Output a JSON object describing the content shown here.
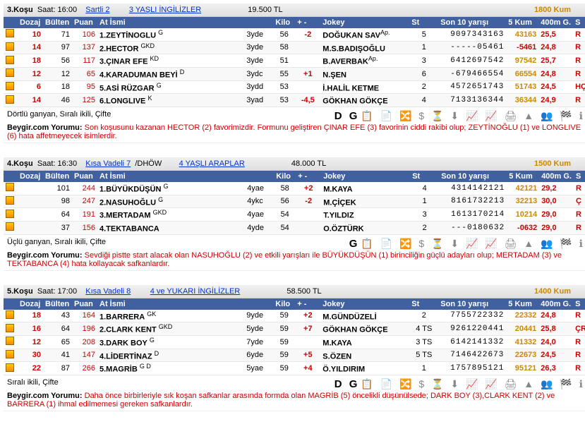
{
  "headers": {
    "dozaj": "Dozaj",
    "bulten": "Bülten",
    "puan": "Puan",
    "at": "At İsmi",
    "kilo": "Kilo",
    "pm": "+ -",
    "jok": "Jokey",
    "st": "St",
    "son10": "Son 10 yarışı",
    "kum": "5 Kum",
    "m400": "400m G.",
    "s": "S"
  },
  "races": [
    {
      "no": "3.Koşu",
      "time": "Saat: 16:00",
      "link1": "Sartli  2",
      "link2": "3 YAŞLI İNGİLİZLER",
      "prize": "19.500 TL",
      "dist": "1800 Kum",
      "rows": [
        {
          "d": "10",
          "b": "71",
          "p": "106",
          "h": "1.ZEYTİNOGLU",
          "sup": "G",
          "age": "3yde",
          "k": "56",
          "pm": "-2",
          "pmc": "neg",
          "j": "DOĞUKAN SAV",
          "jsup": "Ap.",
          "st": "5",
          "s10": "9097343163",
          "kum": "43163",
          "m4": "25,5",
          "sf": "R"
        },
        {
          "d": "14",
          "b": "97",
          "p": "137",
          "h": "2.HECTOR",
          "sup": "GKD",
          "age": "3yde",
          "k": "58",
          "pm": "",
          "pmc": "",
          "j": "M.S.BADIŞOĞLU",
          "jsup": "",
          "st": "1",
          "s10": "-----05461",
          "kum": "-5461",
          "m4": "24,8",
          "sf": "R",
          "kumc": "neg"
        },
        {
          "d": "18",
          "b": "56",
          "p": "117",
          "h": "3.ÇINAR EFE",
          "sup": "KD",
          "age": "3yde",
          "k": "51",
          "pm": "",
          "pmc": "",
          "j": "B.AVERBAK",
          "jsup": "Ap.",
          "st": "3",
          "s10": "6412697542",
          "kum": "97542",
          "m4": "25,7",
          "sf": "R"
        },
        {
          "d": "12",
          "b": "12",
          "p": "65",
          "h": "4.KARADUMAN BEYİ",
          "sup": "D",
          "age": "3ydc",
          "k": "55",
          "pm": "+1",
          "pmc": "pos",
          "j": "N.ŞEN",
          "jsup": "",
          "st": "6",
          "s10": "-679466554",
          "kum": "66554",
          "m4": "24,8",
          "sf": "R"
        },
        {
          "d": "6",
          "b": "18",
          "p": "95",
          "h": "5.ASİ RÜZGAR",
          "sup": "G",
          "age": "3ydd",
          "k": "53",
          "pm": "",
          "pmc": "",
          "j": "İ.HALİL KETME",
          "jsup": "",
          "st": "2",
          "s10": "4572651743",
          "kum": "51743",
          "m4": "24,5",
          "sf": "HÇ"
        },
        {
          "d": "14",
          "b": "46",
          "p": "125",
          "h": "6.LONGLIVE",
          "sup": "K",
          "age": "3yad",
          "k": "53",
          "pm": "-4,5",
          "pmc": "neg",
          "j": "GÖKHAN GÖKÇE",
          "jsup": "",
          "st": "4",
          "s10": "7133136344",
          "kum": "36344",
          "m4": "24,9",
          "sf": "R"
        }
      ],
      "bet": "Dörtlü ganyan, Sıralı ikili, Çifte",
      "bigicons": "D G",
      "comment": "Beygir.com Yorumu:",
      "ctext": " Son koşusunu kazanan HECTOR (2) favorimizdir. Formunu geliştiren ÇINAR EFE (3) favorinin ciddi rakibi olup; ZEYTİNOĞLU (1) ve LONGLIVE (6) hata affetmeyecek isimlerdir."
    },
    {
      "no": "4.Koşu",
      "time": "Saat: 16:30",
      "link1": "Kısa Vadeli  7",
      "link1b": " /DHÖW",
      "link2": "4 YAŞLI ARAPLAR",
      "prize": "48.000 TL",
      "dist": "1500 Kum",
      "rows": [
        {
          "d": "",
          "b": "101",
          "p": "244",
          "h": "1.BÜYÜKDÜŞÜN",
          "sup": "G",
          "age": "4yae",
          "k": "58",
          "pm": "+2",
          "pmc": "pos",
          "j": "M.KAYA",
          "jsup": "",
          "st": "4",
          "s10": "4314142121",
          "kum": "42121",
          "m4": "29,2",
          "sf": "R"
        },
        {
          "d": "",
          "b": "98",
          "p": "247",
          "h": "2.NASUHOĞLU",
          "sup": "G",
          "age": "4ykc",
          "k": "56",
          "pm": "-2",
          "pmc": "neg",
          "j": "M.ÇİÇEK",
          "jsup": "",
          "st": "1",
          "s10": "8161732213",
          "kum": "32213",
          "m4": "30,0",
          "sf": "Ç"
        },
        {
          "d": "",
          "b": "64",
          "p": "191",
          "h": "3.MERTADAM",
          "sup": "GKD",
          "age": "4yae",
          "k": "54",
          "pm": "",
          "pmc": "",
          "j": "T.YILDIZ",
          "jsup": "",
          "st": "3",
          "s10": "1613170214",
          "kum": "10214",
          "m4": "29,0",
          "sf": "R"
        },
        {
          "d": "",
          "b": "37",
          "p": "156",
          "h": "4.TEKTABANCA",
          "sup": "",
          "age": "4yde",
          "k": "54",
          "pm": "",
          "pmc": "",
          "j": "O.ÖZTÜRK",
          "jsup": "",
          "st": "2",
          "s10": "---0180632",
          "kum": "-0632",
          "m4": "29,0",
          "sf": "R",
          "kumc": "neg"
        }
      ],
      "bet": "Üçlü ganyan, Sıralı ikili, Çifte",
      "bigicons": "G",
      "comment": "Beygir.com Yorumu:",
      "ctext": " Sevdiği pistte start alacak olan NASUHOĞLU (2) ve etkili yarışları ile BÜYÜKDÜŞÜN (1) birinciliğin güçlü adayları olup; MERTADAM (3) ve TEKTABANCA (4) hata kollayacak safkanlardır."
    },
    {
      "no": "5.Koşu",
      "time": "Saat: 17:00",
      "link1": "Kısa Vadeli  8",
      "link2": "4 ve YUKARI İNGİLİZLER",
      "prize": "58.500 TL",
      "dist": "1400 Kum",
      "rows": [
        {
          "d": "18",
          "b": "43",
          "p": "164",
          "h": "1.BARRERA",
          "sup": "GK",
          "age": "9yde",
          "k": "59",
          "pm": "+2",
          "pmc": "pos",
          "j": "M.GÜNDÜZELİ",
          "jsup": "",
          "st": "2",
          "s10": "7755722332",
          "kum": "22332",
          "m4": "24,8",
          "sf": "R"
        },
        {
          "d": "16",
          "b": "64",
          "p": "196",
          "h": "2.CLARK KENT",
          "sup": "GKD",
          "age": "5yde",
          "k": "59",
          "pm": "+7",
          "pmc": "pos",
          "j": "GÖKHAN GÖKÇE",
          "jsup": "",
          "st": "4 TS",
          "s10": "9261220441",
          "kum": "20441",
          "m4": "25,8",
          "sf": "ÇR"
        },
        {
          "d": "12",
          "b": "65",
          "p": "208",
          "h": "3.DARK BOY",
          "sup": "G",
          "age": "7yde",
          "k": "59",
          "pm": "",
          "pmc": "",
          "j": "M.KAYA",
          "jsup": "",
          "st": "3 TS",
          "s10": "6142141332",
          "kum": "41332",
          "m4": "24,0",
          "sf": "R"
        },
        {
          "d": "30",
          "b": "41",
          "p": "147",
          "h": "4.LİDERTİNAZ",
          "sup": "D",
          "age": "6yde",
          "k": "59",
          "pm": "+5",
          "pmc": "pos",
          "j": "S.ÖZEN",
          "jsup": "",
          "st": "5 TS",
          "s10": "7146422673",
          "kum": "22673",
          "m4": "24,5",
          "sf": "R"
        },
        {
          "d": "22",
          "b": "87",
          "p": "266",
          "h": "5.MAGRİB",
          "sup": "G D",
          "age": "5yae",
          "k": "59",
          "pm": "+4",
          "pmc": "pos",
          "j": "Ö.YILDIRIM",
          "jsup": "",
          "st": "1",
          "s10": "1757895121",
          "kum": "95121",
          "m4": "26,3",
          "sf": "R"
        }
      ],
      "bet": "Sıralı ikili, Çifte",
      "bigicons": "D G",
      "comment": "Beygir.com Yorumu:",
      "ctext": " Daha önce birbirleriyle sık koşan safkanlar arasında formda olan MAGRİB (5) öncelikli düşünülsede; DARK BOY (3),CLARK KENT (2) ve BARRERA (1) ihmal edilmemesi gereken safkanlardır."
    }
  ],
  "iconrow": "📋 📄 🔀 $ ⏳ ⬇ 📈 📈 🖨 ▲ 👥 🏁 ℹ"
}
